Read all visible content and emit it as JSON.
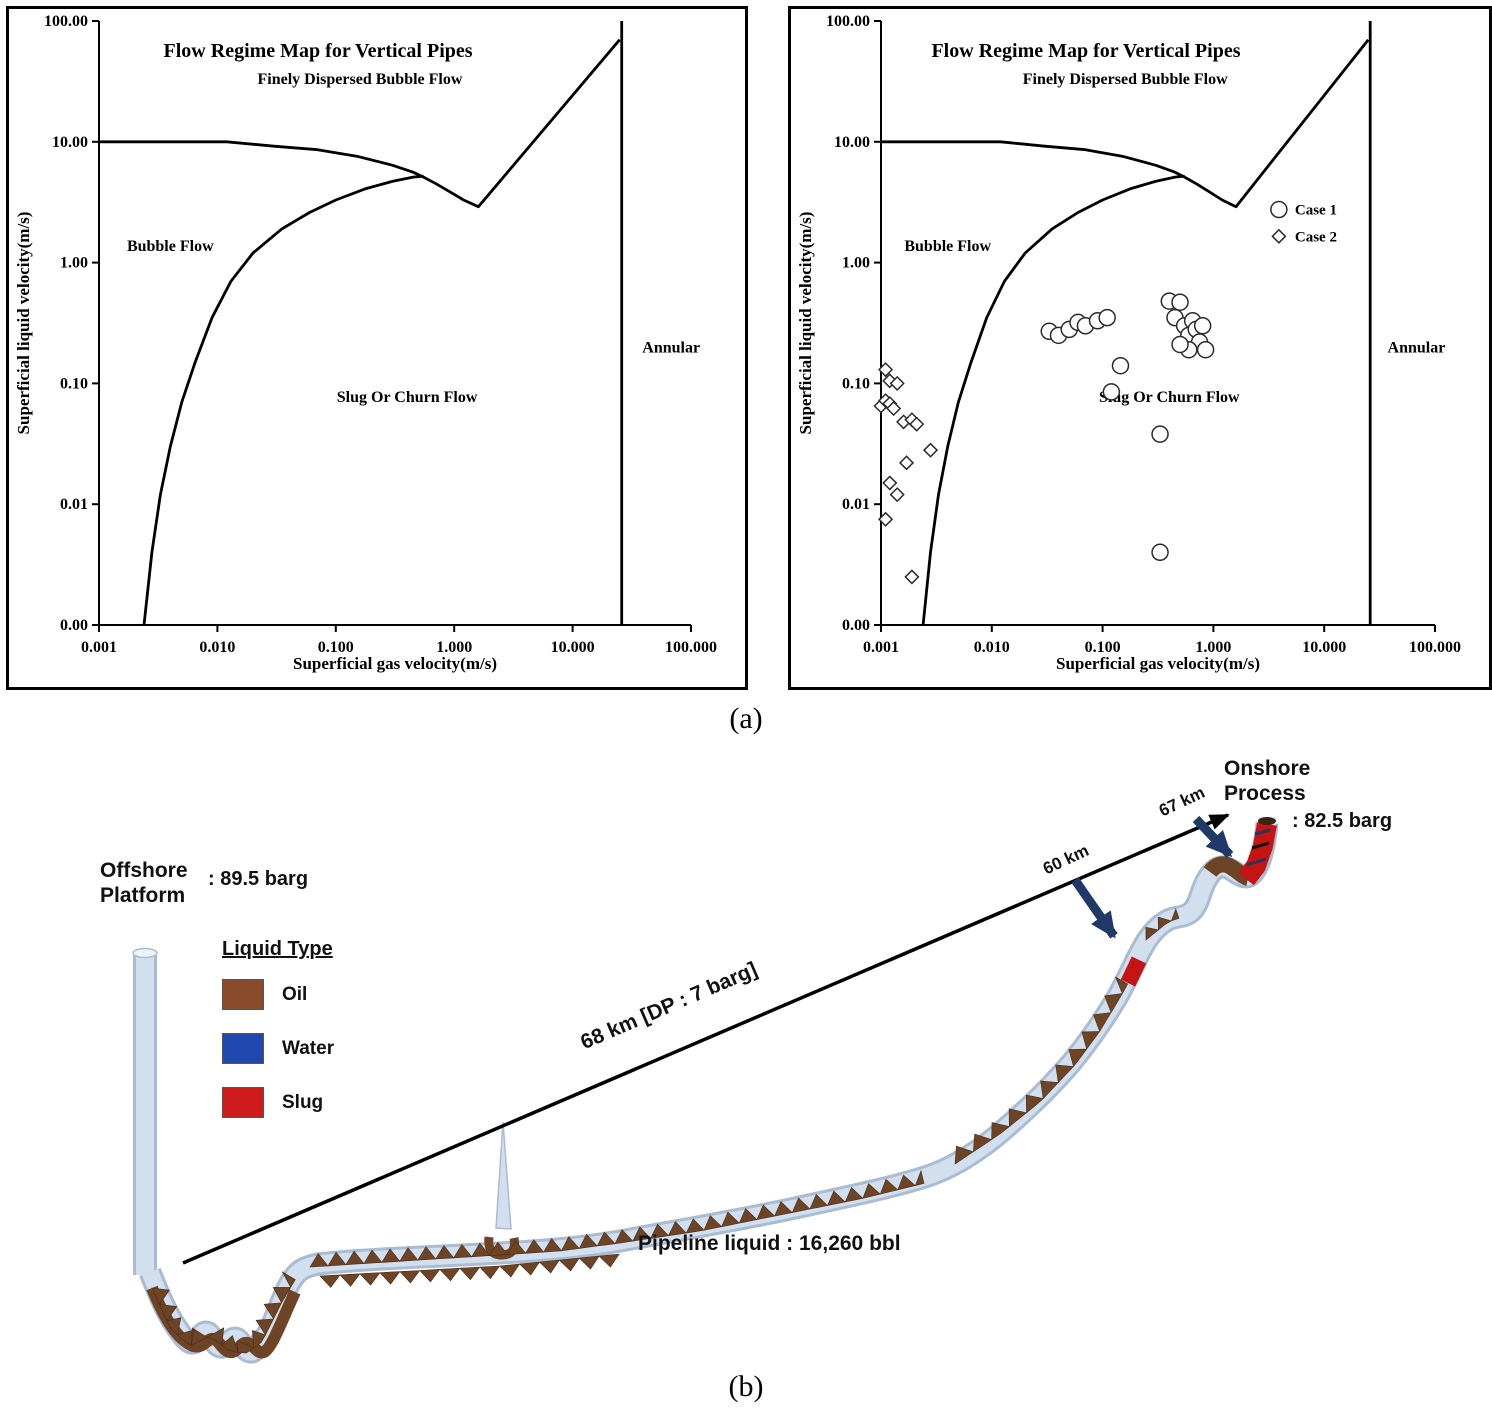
{
  "figure": {
    "caption_a": "(a)",
    "caption_b": "(b)"
  },
  "chart_data": [
    {
      "type": "line",
      "title": "Flow Regime Map for Vertical Pipes",
      "xlabel": "Superficial gas velocity(m/s)",
      "ylabel": "Superficial liquid velocity(m/s)",
      "x_ticks": [
        "0.001",
        "0.010",
        "0.100",
        "1.000",
        "10.000",
        "100.000"
      ],
      "y_ticks": [
        "100.00",
        "10.00",
        "1.00",
        "0.10",
        "0.01",
        "0.00"
      ],
      "xlog_range": [
        -3,
        2
      ],
      "ylog_range": [
        -3,
        2
      ],
      "grid": false,
      "boundaries": [
        {
          "name": "finely-dispersed-bubble-boundary",
          "points": [
            [
              0.001,
              10
            ],
            [
              0.012,
              10
            ],
            [
              0.03,
              9.2
            ],
            [
              0.07,
              8.6
            ],
            [
              0.15,
              7.6
            ],
            [
              0.3,
              6.4
            ],
            [
              0.45,
              5.6
            ],
            [
              0.55,
              5.1
            ],
            [
              0.7,
              4.5
            ],
            [
              0.9,
              3.9
            ],
            [
              1.2,
              3.3
            ],
            [
              1.6,
              2.9
            ],
            [
              25,
              70
            ]
          ]
        },
        {
          "name": "bubble-slug-boundary",
          "points": [
            [
              0.0024,
              0.001
            ],
            [
              0.0028,
              0.004
            ],
            [
              0.0033,
              0.012
            ],
            [
              0.004,
              0.03
            ],
            [
              0.005,
              0.07
            ],
            [
              0.0065,
              0.15
            ],
            [
              0.009,
              0.35
            ],
            [
              0.013,
              0.7
            ],
            [
              0.02,
              1.2
            ],
            [
              0.035,
              1.9
            ],
            [
              0.06,
              2.6
            ],
            [
              0.1,
              3.3
            ],
            [
              0.18,
              4.1
            ],
            [
              0.3,
              4.7
            ],
            [
              0.45,
              5.1
            ],
            [
              0.55,
              5.2
            ]
          ]
        },
        {
          "name": "annular-boundary",
          "points": [
            [
              26,
              0.001
            ],
            [
              26,
              100
            ]
          ]
        }
      ],
      "region_labels": [
        {
          "text": "Finely Dispersed Bubble Flow",
          "x": 0.16,
          "y": 30
        },
        {
          "text": "Bubble Flow",
          "x": 0.004,
          "y": 1.25
        },
        {
          "text": "Slug Or Churn Flow",
          "x": 0.4,
          "y": 0.07
        },
        {
          "text": "Annular",
          "x": 68,
          "y": 0.18
        }
      ],
      "series": [],
      "legend": null
    },
    {
      "type": "line+scatter",
      "title": "Flow Regime Map for Vertical Pipes",
      "xlabel": "Superficial gas velocity(m/s)",
      "ylabel": "Superficial liquid velocity(m/s)",
      "x_ticks": [
        "0.001",
        "0.010",
        "0.100",
        "1.000",
        "10.000",
        "100.000"
      ],
      "y_ticks": [
        "100.00",
        "10.00",
        "1.00",
        "0.10",
        "0.01",
        "0.00"
      ],
      "xlog_range": [
        -3,
        2
      ],
      "ylog_range": [
        -3,
        2
      ],
      "grid": false,
      "boundaries": [
        {
          "name": "finely-dispersed-bubble-boundary",
          "points": [
            [
              0.001,
              10
            ],
            [
              0.012,
              10
            ],
            [
              0.03,
              9.2
            ],
            [
              0.07,
              8.6
            ],
            [
              0.15,
              7.6
            ],
            [
              0.3,
              6.4
            ],
            [
              0.45,
              5.6
            ],
            [
              0.55,
              5.1
            ],
            [
              0.7,
              4.5
            ],
            [
              0.9,
              3.9
            ],
            [
              1.2,
              3.3
            ],
            [
              1.6,
              2.9
            ],
            [
              25,
              70
            ]
          ]
        },
        {
          "name": "bubble-slug-boundary",
          "points": [
            [
              0.0024,
              0.001
            ],
            [
              0.0028,
              0.004
            ],
            [
              0.0033,
              0.012
            ],
            [
              0.004,
              0.03
            ],
            [
              0.005,
              0.07
            ],
            [
              0.0065,
              0.15
            ],
            [
              0.009,
              0.35
            ],
            [
              0.013,
              0.7
            ],
            [
              0.02,
              1.2
            ],
            [
              0.035,
              1.9
            ],
            [
              0.06,
              2.6
            ],
            [
              0.1,
              3.3
            ],
            [
              0.18,
              4.1
            ],
            [
              0.3,
              4.7
            ],
            [
              0.45,
              5.1
            ],
            [
              0.55,
              5.2
            ]
          ]
        },
        {
          "name": "annular-boundary",
          "points": [
            [
              26,
              0.001
            ],
            [
              26,
              100
            ]
          ]
        }
      ],
      "region_labels": [
        {
          "text": "Finely Dispersed Bubble Flow",
          "x": 0.16,
          "y": 30
        },
        {
          "text": "Bubble Flow",
          "x": 0.004,
          "y": 1.25
        },
        {
          "text": "Slug Or Churn Flow",
          "x": 0.4,
          "y": 0.07
        },
        {
          "text": "Annular",
          "x": 68,
          "y": 0.18
        }
      ],
      "series": [
        {
          "name": "Case 1",
          "marker": "circle",
          "points": [
            [
              0.033,
              0.27
            ],
            [
              0.04,
              0.25
            ],
            [
              0.05,
              0.28
            ],
            [
              0.06,
              0.32
            ],
            [
              0.07,
              0.3
            ],
            [
              0.09,
              0.33
            ],
            [
              0.11,
              0.35
            ],
            [
              0.12,
              0.085
            ],
            [
              0.145,
              0.14
            ],
            [
              0.4,
              0.48
            ],
            [
              0.5,
              0.47
            ],
            [
              0.45,
              0.35
            ],
            [
              0.55,
              0.3
            ],
            [
              0.6,
              0.25
            ],
            [
              0.65,
              0.33
            ],
            [
              0.7,
              0.28
            ],
            [
              0.75,
              0.22
            ],
            [
              0.8,
              0.3
            ],
            [
              0.85,
              0.19
            ],
            [
              0.6,
              0.19
            ],
            [
              0.5,
              0.21
            ],
            [
              0.33,
              0.038
            ],
            [
              0.33,
              0.004
            ]
          ]
        },
        {
          "name": "Case 2",
          "marker": "diamond",
          "points": [
            [
              0.0011,
              0.13
            ],
            [
              0.0012,
              0.105
            ],
            [
              0.0014,
              0.1
            ],
            [
              0.001,
              0.065
            ],
            [
              0.0011,
              0.072
            ],
            [
              0.0012,
              0.068
            ],
            [
              0.0013,
              0.062
            ],
            [
              0.0016,
              0.048
            ],
            [
              0.0019,
              0.05
            ],
            [
              0.0021,
              0.046
            ],
            [
              0.0028,
              0.028
            ],
            [
              0.0017,
              0.022
            ],
            [
              0.0012,
              0.015
            ],
            [
              0.0014,
              0.012
            ],
            [
              0.0011,
              0.0075
            ],
            [
              0.0019,
              0.0025
            ]
          ]
        }
      ],
      "legend": {
        "x": 3.9,
        "items": [
          {
            "label": "Case 1",
            "marker": "circle",
            "y": 2.5
          },
          {
            "label": "Case 2",
            "marker": "diamond",
            "y": 1.5
          }
        ]
      }
    }
  ],
  "diagram": {
    "offshore": {
      "line1": "Offshore",
      "line2": "Platform",
      "value": ": 89.5 barg"
    },
    "onshore": {
      "line1": "Onshore",
      "line2": "Process",
      "value": ": 82.5 barg"
    },
    "legend": {
      "title": "Liquid Type",
      "items": [
        {
          "label": "Oil",
          "color": "#8a4b2a"
        },
        {
          "label": "Water",
          "color": "#2148b1"
        },
        {
          "label": "Slug",
          "color": "#cf1b1b"
        }
      ]
    },
    "distance_total": "68 km [DP : 7 barg]",
    "distance_60": "60 km",
    "distance_67": "67 km",
    "pipeline_liquid": "Pipeline liquid : 16,260 bbl",
    "colors": {
      "pipe": "#d2dfee",
      "pipe_edge": "#a9bcd2",
      "oil": "#6e4426",
      "slug": "#c41414",
      "arrow_navy": "#1f3a68"
    }
  }
}
